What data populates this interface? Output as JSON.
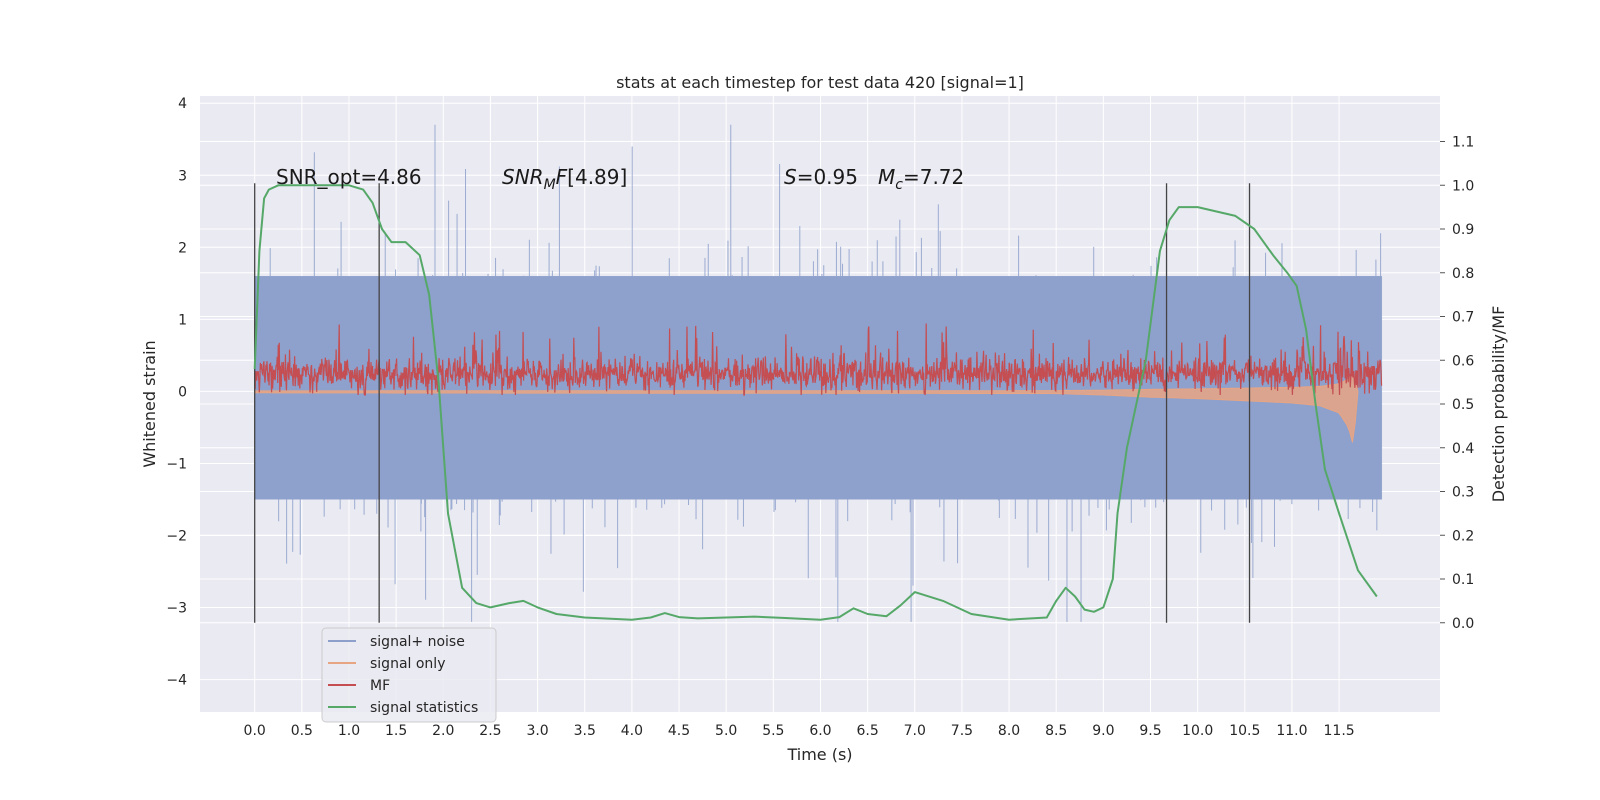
{
  "chart_data": {
    "type": "line",
    "title": "stats at each timestep for test data 420 [signal=1]",
    "xlabel": "Time (s)",
    "ylabel": "Whitened strain",
    "ylabel_right": "Detection probability/MF",
    "xlim": [
      -0.58,
      12.57
    ],
    "ylim": [
      -4.45,
      4.1
    ],
    "ylim_right": [
      -0.204,
      1.204
    ],
    "x_ticks": [
      "0.0",
      "0.5",
      "1.0",
      "1.5",
      "2.0",
      "2.5",
      "3.0",
      "3.5",
      "4.0",
      "4.5",
      "5.0",
      "5.5",
      "6.0",
      "6.5",
      "7.0",
      "7.5",
      "8.0",
      "8.5",
      "9.0",
      "9.5",
      "10.0",
      "10.5",
      "11.0",
      "11.5"
    ],
    "y_ticks": [
      "4",
      "3",
      "2",
      "1",
      "0",
      "−1",
      "−2",
      "−3",
      "−4"
    ],
    "y_ticks_right": [
      "0.0",
      "0.1",
      "0.2",
      "0.3",
      "0.4",
      "0.5",
      "0.6",
      "0.7",
      "0.8",
      "0.9",
      "1.0",
      "1.1"
    ],
    "grid": true,
    "legend_position": "lower-left",
    "annotations": {
      "snr_opt": "SNR_opt=4.86",
      "snr_mf": "[4.89]",
      "s_value": "=0.95",
      "mc_value": "=7.72"
    },
    "vertical_markers_s": [
      0.0,
      1.32,
      9.67,
      10.55
    ],
    "series": [
      {
        "name": "signal+ noise",
        "color": "#8da0cb",
        "axis": "left",
        "t_range": [
          0.0,
          11.95
        ],
        "envelope_upper": 1.6,
        "envelope_lower": -1.5,
        "peak_range": [
          -3.2,
          3.7
        ]
      },
      {
        "name": "signal only",
        "color": "#e8a583",
        "axis": "left",
        "t": [
          0.0,
          8.5,
          9.0,
          9.5,
          10.0,
          10.5,
          11.0,
          11.3,
          11.5,
          11.6,
          11.65,
          11.7
        ],
        "envelope": [
          0.02,
          0.03,
          0.05,
          0.08,
          0.1,
          0.13,
          0.16,
          0.2,
          0.3,
          0.5,
          0.75,
          0.0
        ]
      },
      {
        "name": "MF",
        "color": "#c44e52",
        "axis": "left",
        "t_range": [
          0.0,
          11.95
        ],
        "mean": 0.25,
        "band": [
          0.0,
          0.55
        ],
        "peak_max": 1.0
      },
      {
        "name": "signal statistics",
        "color": "#55a868",
        "axis": "right",
        "t": [
          0.0,
          0.05,
          0.1,
          0.15,
          0.25,
          0.5,
          1.0,
          1.15,
          1.25,
          1.35,
          1.45,
          1.6,
          1.75,
          1.85,
          1.95,
          2.05,
          2.2,
          2.35,
          2.5,
          2.7,
          2.85,
          3.0,
          3.2,
          3.5,
          4.0,
          4.2,
          4.35,
          4.5,
          4.7,
          5.0,
          5.3,
          5.6,
          6.0,
          6.2,
          6.35,
          6.5,
          6.7,
          6.85,
          7.0,
          7.3,
          7.6,
          8.0,
          8.4,
          8.5,
          8.6,
          8.7,
          8.8,
          8.9,
          9.0,
          9.1,
          9.15,
          9.25,
          9.35,
          9.45,
          9.6,
          9.7,
          9.8,
          9.9,
          10.0,
          10.2,
          10.4,
          10.6,
          10.8,
          10.95,
          11.05,
          11.15,
          11.25,
          11.35,
          11.5,
          11.7,
          11.9
        ],
        "values": [
          0.58,
          0.85,
          0.97,
          0.99,
          1.0,
          1.0,
          1.0,
          0.99,
          0.96,
          0.9,
          0.87,
          0.87,
          0.84,
          0.75,
          0.55,
          0.25,
          0.08,
          0.045,
          0.035,
          0.045,
          0.05,
          0.035,
          0.02,
          0.012,
          0.007,
          0.012,
          0.022,
          0.013,
          0.01,
          0.012,
          0.014,
          0.011,
          0.007,
          0.013,
          0.033,
          0.02,
          0.015,
          0.04,
          0.07,
          0.05,
          0.02,
          0.007,
          0.012,
          0.05,
          0.08,
          0.06,
          0.03,
          0.025,
          0.035,
          0.1,
          0.25,
          0.4,
          0.5,
          0.6,
          0.85,
          0.92,
          0.95,
          0.95,
          0.95,
          0.94,
          0.93,
          0.9,
          0.84,
          0.8,
          0.77,
          0.67,
          0.5,
          0.35,
          0.25,
          0.12,
          0.06
        ]
      }
    ]
  }
}
